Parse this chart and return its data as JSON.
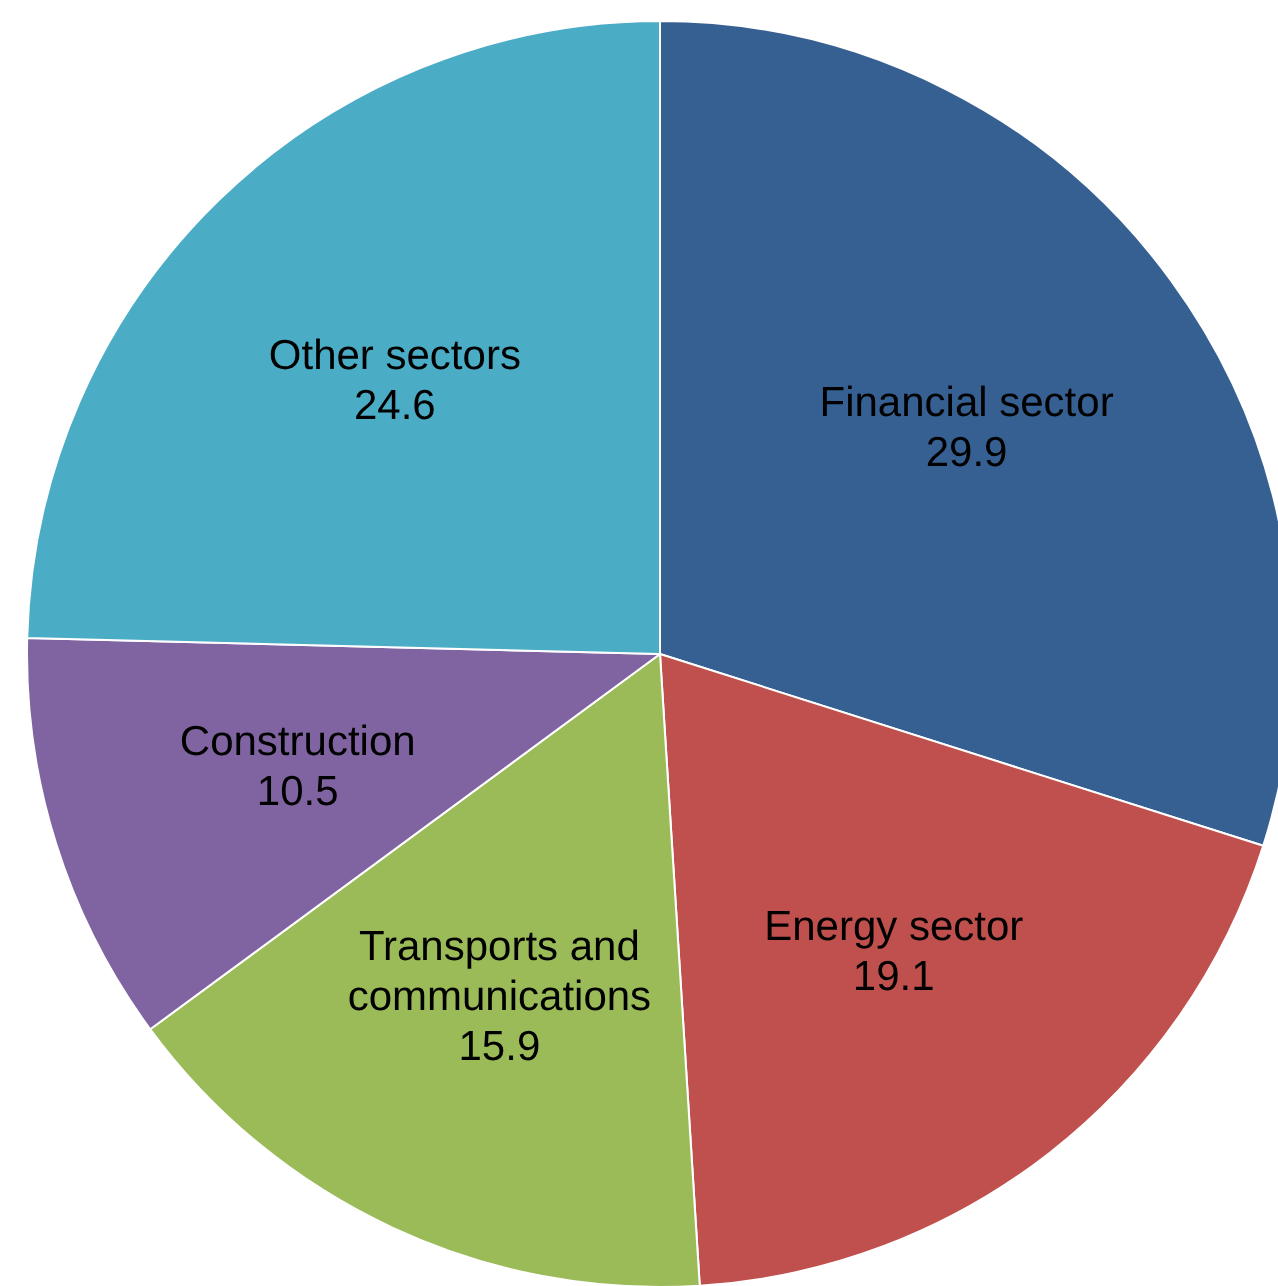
{
  "chart_data": {
    "type": "pie",
    "categories": [
      "Financial sector",
      "Energy sector",
      "Transports and communications",
      "Construction",
      "Other sectors"
    ],
    "values": [
      29.9,
      19.1,
      15.9,
      10.5,
      24.6
    ],
    "colors": [
      "#376092",
      "#c0504d",
      "#9bbb59",
      "#8064a2",
      "#4bacc6"
    ],
    "data_labels": true,
    "legend": false
  }
}
